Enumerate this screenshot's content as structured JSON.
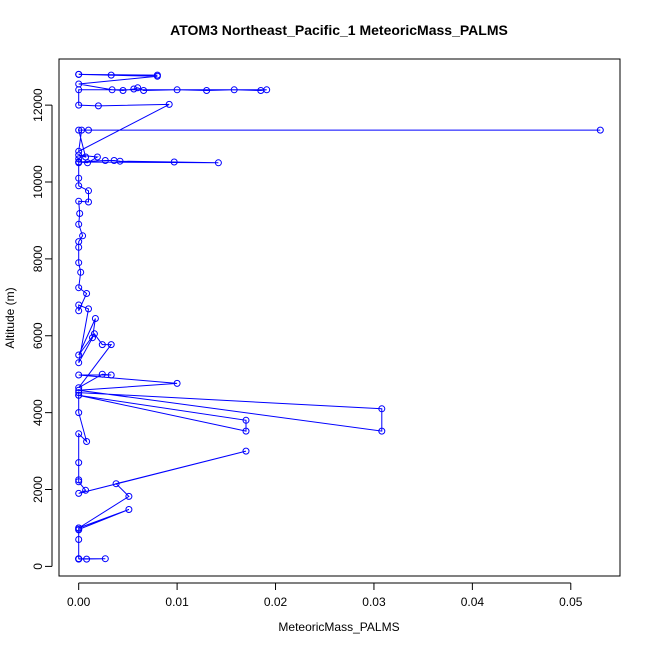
{
  "chart_data": {
    "type": "line",
    "title": "ATOM3 Northeast_Pacific_1 MeteoricMass_PALMS",
    "xlabel": "MeteoricMass_PALMS",
    "ylabel": "Altitude (m)",
    "xlim": [
      -0.002,
      0.055
    ],
    "ylim": [
      -250,
      13200
    ],
    "x_ticks": [
      0,
      0.01,
      0.02,
      0.03,
      0.04,
      0.05
    ],
    "x_tick_labels": [
      "0.00",
      "0.01",
      "0.02",
      "0.03",
      "0.04",
      "0.05"
    ],
    "y_ticks": [
      0,
      2000,
      4000,
      6000,
      8000,
      10000,
      12000
    ],
    "y_tick_labels": [
      "0",
      "2000",
      "4000",
      "6000",
      "8000",
      "10000",
      "12000"
    ],
    "grid": false,
    "legend": "none",
    "series_style": {
      "color": "#0000ff",
      "marker": "open-circle"
    },
    "series": [
      {
        "x": [
          0,
          0.0027,
          0,
          0.0008,
          0,
          0,
          0,
          0,
          0.0051,
          0,
          0,
          0.0051,
          0.0038,
          0.017,
          0,
          0.0007,
          0,
          0,
          0,
          0,
          0.0008,
          0,
          0,
          0.017,
          0.017,
          0,
          0,
          0.0308,
          0.0308,
          0,
          0.01,
          0,
          0.0033,
          0.0024,
          0,
          0.0033,
          0.0024,
          0.0016,
          0,
          0.0017,
          0.0014,
          0,
          0.001,
          0,
          0,
          0.0008,
          0,
          0.0002,
          0,
          0,
          0,
          0.0004,
          0,
          0.0001,
          0,
          0.001,
          0.001,
          0,
          0,
          0,
          0,
          0,
          0.0142,
          0.0097,
          0.0042,
          0.0036,
          0.0027,
          0,
          0.0009,
          0.0019,
          0,
          0.0007,
          0,
          0.053,
          0.001,
          0.0003,
          0,
          0.0092,
          0.002,
          0,
          0,
          0.0191,
          0.0185,
          0.0158,
          0.013,
          0.01,
          0.0066,
          0.006,
          0.0056,
          0.0045,
          0.0034,
          0,
          0.008,
          0,
          0.008,
          0.0033,
          0
        ],
        "y": [
          200,
          200,
          190,
          190,
          200,
          700,
          950,
          1000,
          1480,
          960,
          1000,
          1820,
          2150,
          3000,
          1900,
          1980,
          2200,
          2250,
          2700,
          3450,
          3250,
          4000,
          4450,
          3800,
          3520,
          4450,
          4520,
          4100,
          3520,
          4580,
          4760,
          4980,
          4980,
          5000,
          4650,
          5770,
          5770,
          6050,
          5500,
          6450,
          5950,
          5300,
          6700,
          6800,
          6650,
          7100,
          7250,
          7650,
          7900,
          8300,
          8450,
          8600,
          8900,
          9180,
          9500,
          9480,
          9770,
          9900,
          10100,
          10500,
          10600,
          10520,
          10500,
          10520,
          10540,
          10560,
          10560,
          10520,
          10500,
          10650,
          10700,
          10650,
          11350,
          11350,
          11350,
          11350,
          10800,
          12020,
          11980,
          12000,
          12400,
          12400,
          12380,
          12400,
          12380,
          12400,
          12380,
          12450,
          12420,
          12380,
          12400,
          12550,
          12750,
          12800,
          12780,
          12780,
          12800
        ]
      }
    ]
  }
}
